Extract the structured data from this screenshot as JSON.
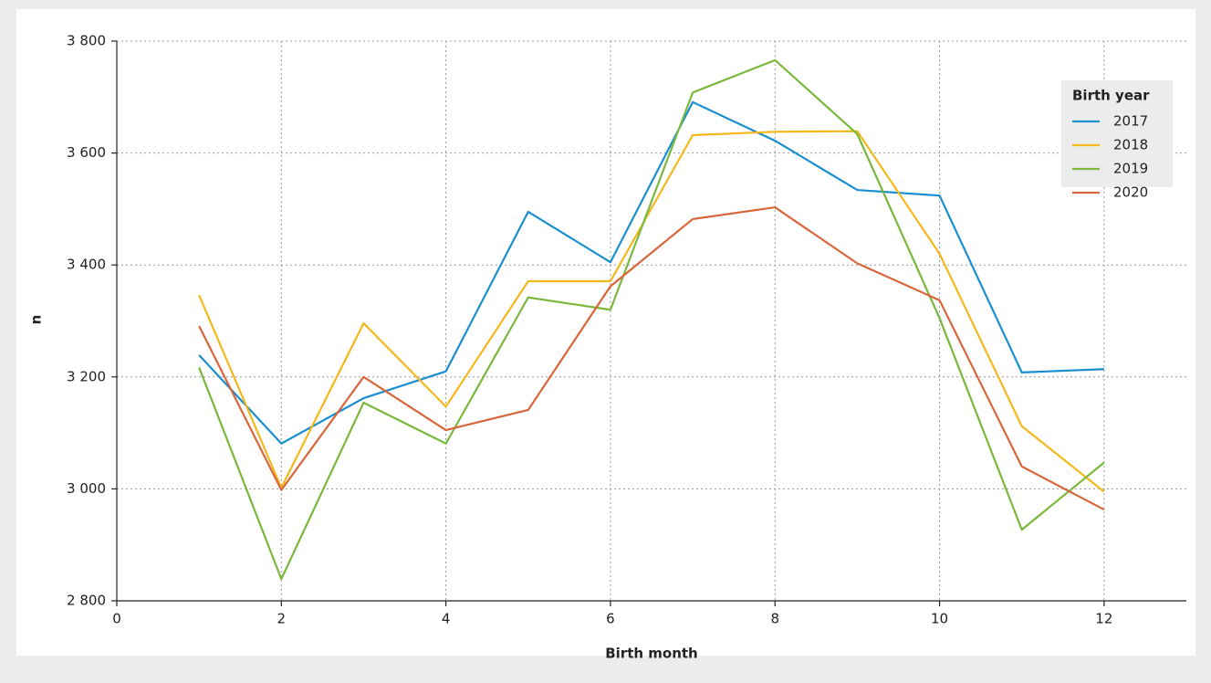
{
  "chart_data": {
    "type": "line",
    "x_label": "Birth month",
    "y_label": "n",
    "legend_title": "Birth year",
    "legend": "top-right",
    "grid": true,
    "x": [
      1,
      2,
      3,
      4,
      5,
      6,
      7,
      8,
      9,
      10,
      11,
      12
    ],
    "series": [
      {
        "name": "2017",
        "color": "#1a8fd0",
        "values": [
          3239,
          3081,
          3162,
          3210,
          3495,
          3405,
          3691,
          3622,
          3534,
          3524,
          3208,
          3214
        ]
      },
      {
        "name": "2018",
        "color": "#f5b81c",
        "values": [
          3346,
          3002,
          3296,
          3147,
          3371,
          3371,
          3632,
          3638,
          3639,
          3420,
          3112,
          2995
        ]
      },
      {
        "name": "2019",
        "color": "#7ab83c",
        "values": [
          3217,
          2839,
          3154,
          3081,
          3342,
          3320,
          3708,
          3766,
          3634,
          3305,
          2927,
          3047
        ]
      },
      {
        "name": "2020",
        "color": "#d9663a",
        "values": [
          3291,
          2998,
          3200,
          3105,
          3141,
          3362,
          3482,
          3503,
          3403,
          3337,
          3040,
          2963
        ]
      }
    ],
    "xlim": [
      0,
      13
    ],
    "xticks": [
      0,
      2,
      4,
      6,
      8,
      10,
      12
    ],
    "ylim": [
      2800,
      3800
    ],
    "yticks": [
      {
        "value": 2800,
        "label": "2 800"
      },
      {
        "value": 3000,
        "label": "3 000"
      },
      {
        "value": 3200,
        "label": "3 200"
      },
      {
        "value": 3400,
        "label": "3 400"
      },
      {
        "value": 3600,
        "label": "3 600"
      },
      {
        "value": 3800,
        "label": "3 800"
      }
    ]
  }
}
